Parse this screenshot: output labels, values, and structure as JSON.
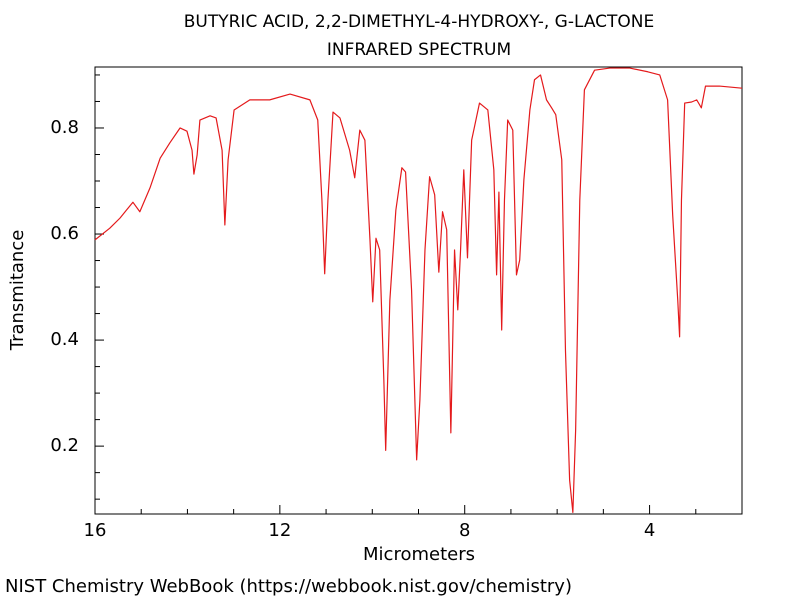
{
  "chart_data": {
    "type": "line",
    "title": "BUTYRIC ACID, 2,2-DIMETHYL-4-HYDROXY-, G-LACTONE",
    "subtitle": "INFRARED SPECTRUM",
    "x_label": "Micrometers",
    "y_label": "Transmitance",
    "source": "NIST Chemistry WebBook (https://webbook.nist.gov/chemistry)",
    "color": "#e41a1c",
    "xlim": [
      16,
      2
    ],
    "ylim": [
      0.072,
      0.915
    ],
    "xticks": [
      16,
      12,
      8,
      4
    ],
    "yticks": [
      0.2,
      0.4,
      0.6,
      0.8
    ],
    "minor_xticks": [
      15,
      14,
      13,
      11,
      10,
      9,
      7,
      6,
      5,
      3
    ],
    "minor_yticks": [
      0.1,
      0.15,
      0.25,
      0.3,
      0.35,
      0.45,
      0.5,
      0.55,
      0.65,
      0.7,
      0.75,
      0.85,
      0.9
    ],
    "x": [
      16,
      15.68,
      15.46,
      15.18,
      15.03,
      14.81,
      14.59,
      14.38,
      14.16,
      14.01,
      13.9,
      13.86,
      13.79,
      13.73,
      13.51,
      13.38,
      13.25,
      13.19,
      13.12,
      12.99,
      12.65,
      12.22,
      11.78,
      11.35,
      11.18,
      11.09,
      11.03,
      10.96,
      10.85,
      10.7,
      10.49,
      10.38,
      10.27,
      10.16,
      10.05,
      9.99,
      9.92,
      9.84,
      9.75,
      9.71,
      9.62,
      9.49,
      9.36,
      9.28,
      9.15,
      9.04,
      8.97,
      8.86,
      8.76,
      8.65,
      8.56,
      8.48,
      8.39,
      8.3,
      8.22,
      8.15,
      8.09,
      8.02,
      7.94,
      7.85,
      7.68,
      7.5,
      7.37,
      7.31,
      7.26,
      7.2,
      7.14,
      7.07,
      6.96,
      6.88,
      6.81,
      6.72,
      6.59,
      6.49,
      6.36,
      6.23,
      6.12,
      6.03,
      5.9,
      5.82,
      5.73,
      5.66,
      5.6,
      5.51,
      5.41,
      5.19,
      4.86,
      4.43,
      4.04,
      3.78,
      3.61,
      3.5,
      3.39,
      3.35,
      3.31,
      3.24,
      3.09,
      2.98,
      2.88,
      2.79,
      2.49,
      2.0
    ],
    "values": [
      0.589,
      0.611,
      0.63,
      0.66,
      0.642,
      0.687,
      0.743,
      0.772,
      0.8,
      0.794,
      0.758,
      0.713,
      0.749,
      0.815,
      0.823,
      0.819,
      0.758,
      0.617,
      0.74,
      0.834,
      0.853,
      0.853,
      0.864,
      0.853,
      0.815,
      0.664,
      0.525,
      0.664,
      0.83,
      0.819,
      0.758,
      0.706,
      0.796,
      0.777,
      0.589,
      0.472,
      0.592,
      0.57,
      0.325,
      0.192,
      0.475,
      0.645,
      0.725,
      0.717,
      0.494,
      0.174,
      0.287,
      0.57,
      0.708,
      0.674,
      0.528,
      0.642,
      0.608,
      0.225,
      0.57,
      0.457,
      0.57,
      0.721,
      0.555,
      0.777,
      0.847,
      0.834,
      0.721,
      0.523,
      0.679,
      0.419,
      0.664,
      0.815,
      0.796,
      0.523,
      0.551,
      0.702,
      0.834,
      0.891,
      0.9,
      0.853,
      0.838,
      0.825,
      0.74,
      0.381,
      0.136,
      0.075,
      0.23,
      0.664,
      0.872,
      0.909,
      0.913,
      0.913,
      0.906,
      0.9,
      0.853,
      0.636,
      0.475,
      0.406,
      0.664,
      0.847,
      0.849,
      0.853,
      0.838,
      0.879,
      0.879,
      0.875
    ]
  }
}
